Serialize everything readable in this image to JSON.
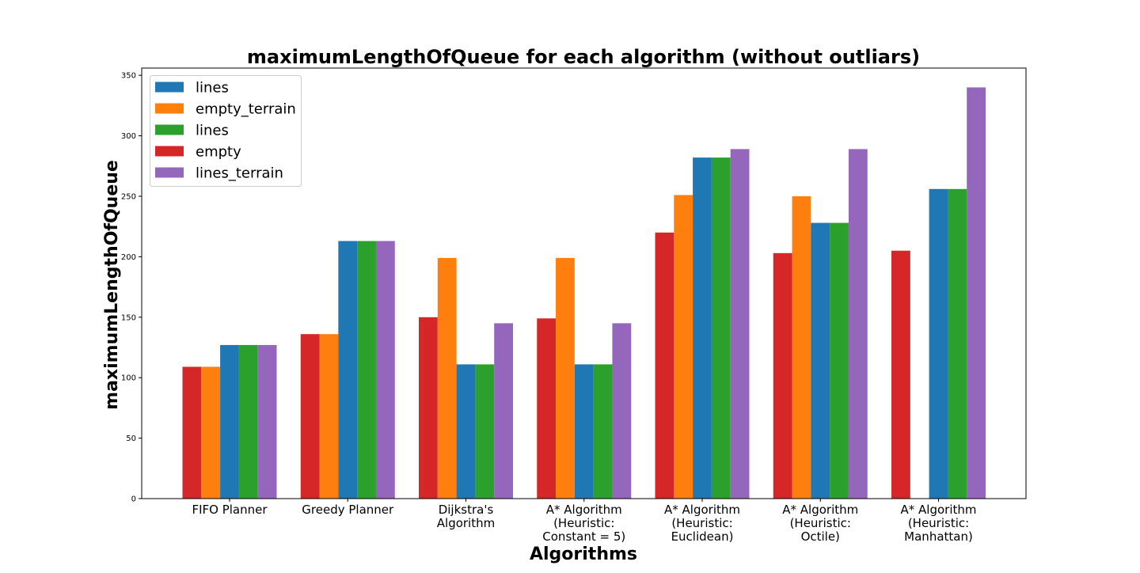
{
  "chart_data": {
    "type": "bar",
    "title": "maximumLengthOfQueue for each algorithm (without outliars)",
    "xlabel": "Algorithms",
    "ylabel": "maximumLengthOfQueue",
    "ylim": [
      0,
      356
    ],
    "yticks": [
      0,
      50,
      100,
      150,
      200,
      250,
      300,
      350
    ],
    "grid": false,
    "legend_position": "top-left",
    "categories": [
      [
        "FIFO Planner"
      ],
      [
        "Greedy Planner"
      ],
      [
        "Dijkstra's",
        "Algorithm"
      ],
      [
        "A* Algorithm",
        "(Heuristic:",
        "Constant = 5)"
      ],
      [
        "A* Algorithm",
        "(Heuristic:",
        "Euclidean)"
      ],
      [
        "A* Algorithm",
        "(Heuristic:",
        "Octile)"
      ],
      [
        "A* Algorithm",
        "(Heuristic:",
        "Manhattan)"
      ]
    ],
    "series": [
      {
        "name": "empty",
        "color": "#d62728",
        "values": [
          109,
          136,
          150,
          149,
          220,
          203,
          205
        ]
      },
      {
        "name": "empty_terrain",
        "color": "#ff7f0e",
        "values": [
          109,
          136,
          199,
          199,
          251,
          250,
          null
        ]
      },
      {
        "name": "lines",
        "color": "#1f77b4",
        "values": [
          127,
          213,
          111,
          111,
          282,
          228,
          256
        ]
      },
      {
        "name": "lines",
        "color": "#2ca02c",
        "values": [
          127,
          213,
          111,
          111,
          282,
          228,
          256
        ]
      },
      {
        "name": "lines_terrain",
        "color": "#9467bd",
        "values": [
          127,
          213,
          145,
          145,
          289,
          289,
          340
        ]
      }
    ],
    "legend_order": [
      2,
      1,
      3,
      0,
      4
    ]
  }
}
